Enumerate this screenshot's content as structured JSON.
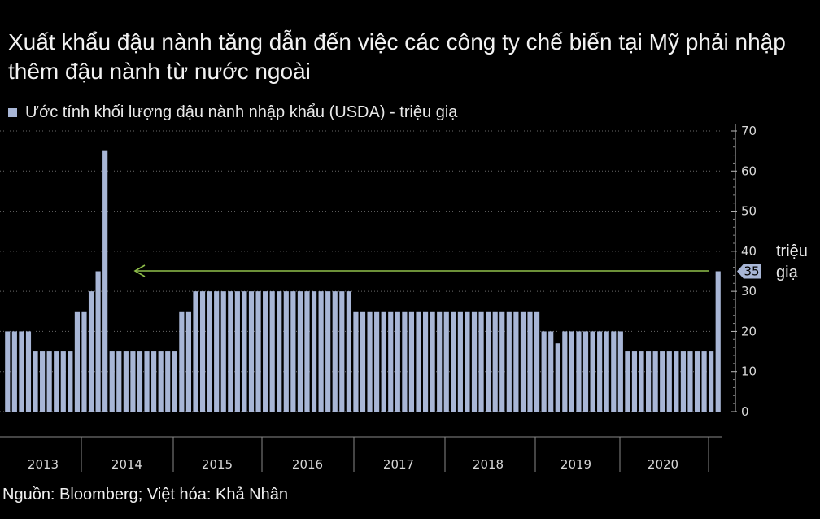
{
  "title": "Xuất khẩu đậu nành tăng dẫn đến việc các công ty chế biến tại Mỹ phải nhập thêm đậu nành từ nước ngoài",
  "legend_label": "Ước tính khối lượng đậu nành nhập khẩu (USDA) - triệu giạ",
  "unit_label": "triệu giạ",
  "source": "Nguồn: Bloomberg; Việt hóa: Khả Nhân",
  "colors": {
    "background": "#000000",
    "bar": "#a8b6d6",
    "arrow": "#8fbf4a",
    "grid": "#6a6a6a"
  },
  "chart_data": {
    "type": "bar",
    "series": [
      {
        "name": "Ước tính khối lượng đậu nành nhập khẩu (USDA) - triệu giạ",
        "values": [
          20,
          20,
          20,
          20,
          15,
          15,
          15,
          15,
          15,
          15,
          25,
          25,
          30,
          35,
          65,
          15,
          15,
          15,
          15,
          15,
          15,
          15,
          15,
          15,
          15,
          25,
          25,
          30,
          30,
          30,
          30,
          30,
          30,
          30,
          30,
          30,
          30,
          30,
          30,
          30,
          30,
          30,
          30,
          30,
          30,
          30,
          30,
          30,
          30,
          30,
          25,
          25,
          25,
          25,
          25,
          25,
          25,
          25,
          25,
          25,
          25,
          25,
          25,
          25,
          25,
          25,
          25,
          25,
          25,
          25,
          25,
          25,
          25,
          25,
          25,
          25,
          25,
          20,
          20,
          17,
          20,
          20,
          20,
          20,
          20,
          20,
          20,
          20,
          20,
          15,
          15,
          15,
          15,
          15,
          15,
          15,
          15,
          15,
          15,
          15,
          15,
          15,
          35
        ]
      }
    ],
    "x_labels": [
      "2013",
      "2014",
      "2015",
      "2016",
      "2017",
      "2018",
      "2019",
      "2020"
    ],
    "y_ticks": [
      0,
      10,
      20,
      30,
      40,
      50,
      60,
      70
    ],
    "ylim": [
      0,
      70
    ],
    "grid": true,
    "last_value_label": "35",
    "annotation": "arrow pointing from latest value (35) back to 2014 peak level"
  }
}
